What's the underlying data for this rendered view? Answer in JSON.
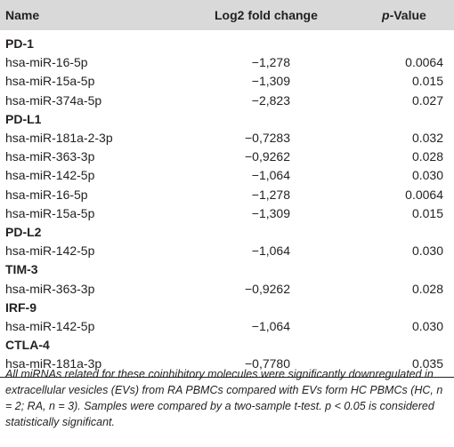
{
  "header": {
    "name": "Name",
    "fold_change": "Log2 fold change",
    "p_italic": "p",
    "p_rest": "-Value"
  },
  "rows": [
    {
      "type": "group",
      "name": "PD-1"
    },
    {
      "type": "data",
      "name": "hsa-miR-16-5p",
      "fc": "−1,278",
      "p": "0.0064"
    },
    {
      "type": "data",
      "name": "hsa-miR-15a-5p",
      "fc": "−1,309",
      "p": "0.015"
    },
    {
      "type": "data",
      "name": "hsa-miR-374a-5p",
      "fc": "−2,823",
      "p": "0.027"
    },
    {
      "type": "group",
      "name": "PD-L1"
    },
    {
      "type": "data",
      "name": "hsa-miR-181a-2-3p",
      "fc": "−0,7283",
      "p": "0.032"
    },
    {
      "type": "data",
      "name": "hsa-miR-363-3p",
      "fc": "−0,9262",
      "p": "0.028"
    },
    {
      "type": "data",
      "name": "hsa-miR-142-5p",
      "fc": "−1,064",
      "p": "0.030"
    },
    {
      "type": "data",
      "name": "hsa-miR-16-5p",
      "fc": "−1,278",
      "p": "0.0064"
    },
    {
      "type": "data",
      "name": "hsa-miR-15a-5p",
      "fc": "−1,309",
      "p": "0.015"
    },
    {
      "type": "group",
      "name": "PD-L2"
    },
    {
      "type": "data",
      "name": "hsa-miR-142-5p",
      "fc": "−1,064",
      "p": "0.030"
    },
    {
      "type": "group",
      "name": "TIM-3"
    },
    {
      "type": "data",
      "name": "hsa-miR-363-3p",
      "fc": "−0,9262",
      "p": "0.028"
    },
    {
      "type": "group",
      "name": "IRF-9"
    },
    {
      "type": "data",
      "name": "hsa-miR-142-5p",
      "fc": "−1,064",
      "p": "0.030"
    },
    {
      "type": "group",
      "name": "CTLA-4"
    },
    {
      "type": "data",
      "name": "hsa-miR-181a-3p",
      "fc": "−0,7780",
      "p": "0.035"
    }
  ],
  "footnote": "All miRNAs related for these coinhibitory molecules were significantly downregulated in extracellular vesicles (EVs) from RA PBMCs compared with EVs form HC PBMCs (HC, n = 2; RA, n = 3). Samples were compared by a two-sample t-test. p < 0.05 is considered statistically significant."
}
